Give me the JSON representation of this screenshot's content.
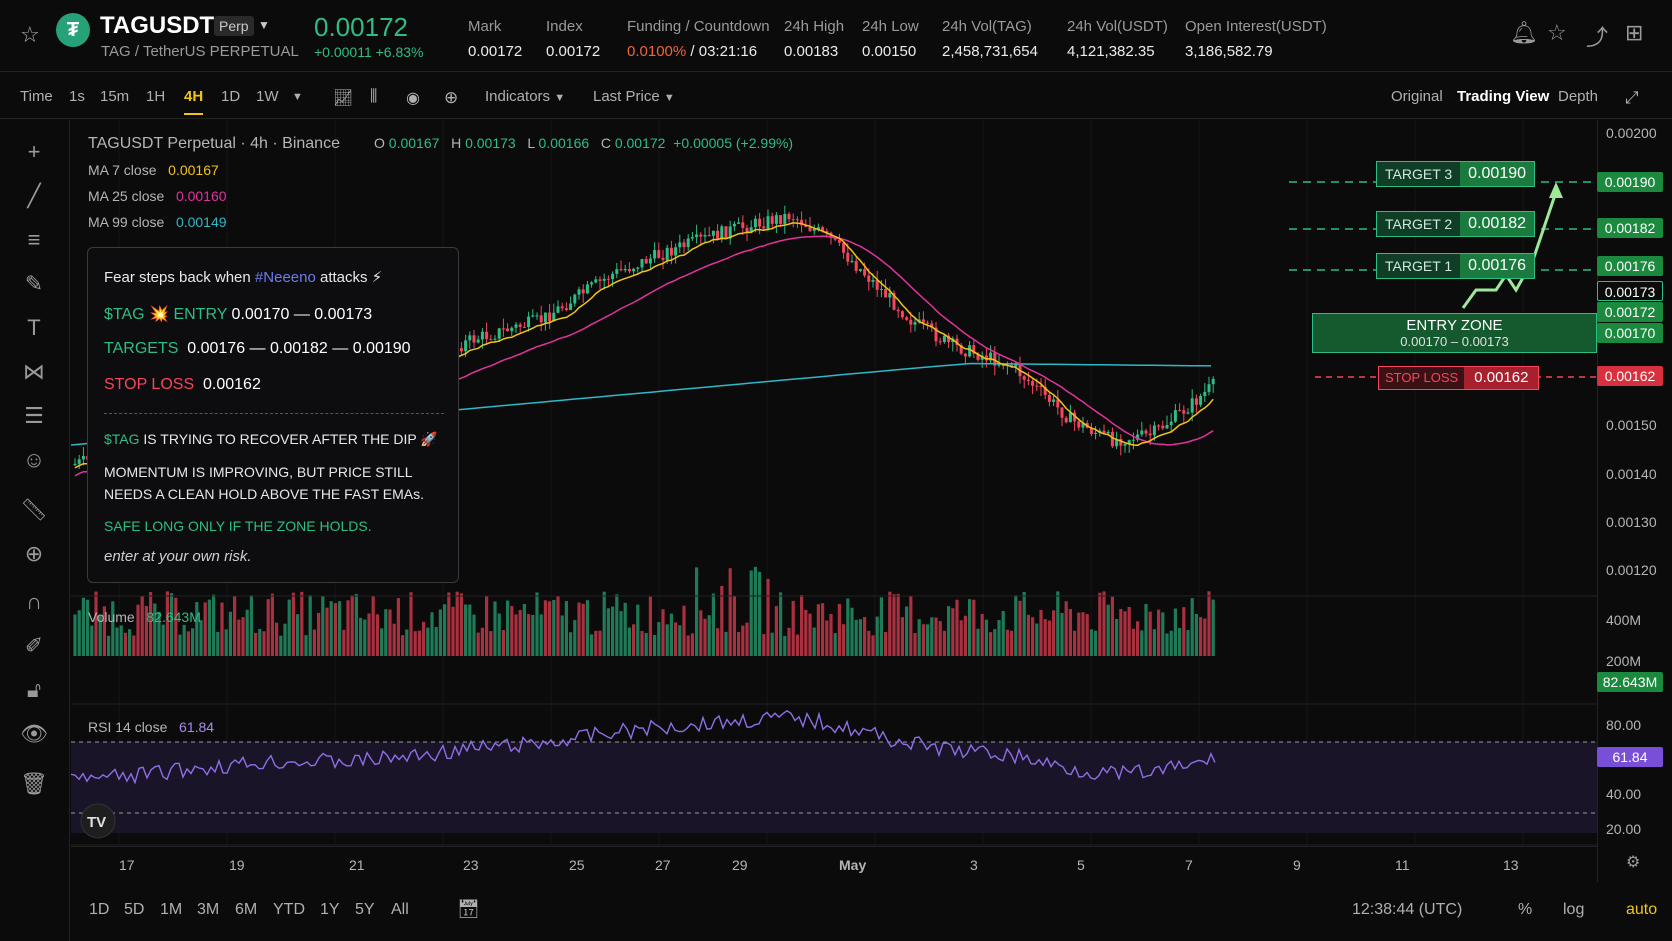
{
  "header": {
    "symbol": "TAGUSDT",
    "badge": "Perp",
    "subtitle": "TAG / TetherUS PERPETUAL",
    "price": "0.00172",
    "change": "+0.00011 +6.83%",
    "stats": [
      {
        "label": "Mark",
        "value": "0.00172"
      },
      {
        "label": "Index",
        "value": "0.00172"
      },
      {
        "label": "Funding / Countdown",
        "value_rate": "0.0100%",
        "value_time": "/ 03:21:16"
      },
      {
        "label": "24h High",
        "value": "0.00183"
      },
      {
        "label": "24h Low",
        "value": "0.00150"
      },
      {
        "label": "24h Vol(TAG)",
        "value": "2,458,731,654"
      },
      {
        "label": "24h Vol(USDT)",
        "value": "4,121,382.35"
      },
      {
        "label": "Open Interest(USDT)",
        "value": "3,186,582.79"
      }
    ]
  },
  "toolbar": {
    "time": "Time",
    "intervals": [
      "1s",
      "15m",
      "1H",
      "4H",
      "1D",
      "1W"
    ],
    "active_interval": "4H",
    "indicators": "Indicators",
    "last_price": "Last Price",
    "views": [
      "Original",
      "Trading View",
      "Depth"
    ],
    "active_view": "Trading View"
  },
  "legend": {
    "title": "TAGUSDT Perpetual · 4h · Binance",
    "o_label": "O",
    "o": "0.00167",
    "h_label": "H",
    "h": "0.00173",
    "l_label": "L",
    "l": "0.00166",
    "c_label": "C",
    "c": "0.00172",
    "chg": "+0.00005 (+2.99%)",
    "ma": [
      {
        "label": "MA 7 close",
        "value": "0.00167",
        "color": "#f0c419"
      },
      {
        "label": "MA 25 close",
        "value": "0.00160",
        "color": "#e0339b"
      },
      {
        "label": "MA 99 close",
        "value": "0.00149",
        "color": "#2fb8c8"
      }
    ]
  },
  "card": {
    "line1_pre": "Fear steps back when",
    "line1_tag": "#Neeeno",
    "line1_post": "attacks ⚡",
    "tag": "$TAG",
    "entry_label": "ENTRY",
    "entry_value": "0.00170 — 0.00173",
    "targets_label": "TARGETS",
    "targets_value": "0.00176 — 0.00182 — 0.00190",
    "stop_label": "STOP LOSS",
    "stop_value": "0.00162",
    "recover": "IS TRYING TO RECOVER AFTER THE DIP 🚀",
    "momentum1": "MOMENTUM IS IMPROVING, BUT PRICE STILL",
    "momentum2": "NEEDS A CLEAN HOLD ABOVE THE FAST EMAs.",
    "safe": "SAFE LONG ONLY IF THE ZONE HOLDS.",
    "risk": "enter at your own risk."
  },
  "targets": [
    {
      "label": "TARGET 3",
      "value": "0.00190"
    },
    {
      "label": "TARGET 2",
      "value": "0.00182"
    },
    {
      "label": "TARGET 1",
      "value": "0.00176"
    }
  ],
  "entry_zone": {
    "label": "ENTRY ZONE",
    "range": "0.00170 – 0.00173"
  },
  "stop": {
    "label": "STOP LOSS",
    "value": "0.00162"
  },
  "price_axis": [
    "0.00200",
    "0.00150",
    "0.00140",
    "0.00130",
    "0.00120"
  ],
  "price_labels": [
    {
      "v": "0.00190",
      "c": "#1b8a3f"
    },
    {
      "v": "0.00182",
      "c": "#1b8a3f"
    },
    {
      "v": "0.00176",
      "c": "#1b8a3f"
    },
    {
      "v": "0.00173",
      "c": "#0b0b0c"
    },
    {
      "v": "0.00172",
      "c": "#1b8a3f"
    },
    {
      "v": "0.00170",
      "c": "#1b8a3f"
    },
    {
      "v": "0.00162",
      "c": "#d9303e"
    }
  ],
  "volume": {
    "label": "Volume",
    "value": "82.643M",
    "axis": [
      "400M",
      "200M"
    ],
    "badge": "82.643M"
  },
  "rsi": {
    "label": "RSI 14 close",
    "value": "61.84",
    "axis": [
      "80.00",
      "40.00",
      "20.00"
    ],
    "badge": "61.84"
  },
  "x_axis": [
    "17",
    "19",
    "21",
    "23",
    "25",
    "27",
    "29",
    "May",
    "3",
    "5",
    "7",
    "9",
    "11",
    "13"
  ],
  "bottom": {
    "ranges": [
      "1D",
      "5D",
      "1M",
      "3M",
      "6M",
      "YTD",
      "1Y",
      "5Y",
      "All"
    ],
    "clock": "12:38:44 (UTC)",
    "percent": "%",
    "log": "log",
    "auto": "auto"
  },
  "colors": {
    "up": "#2ebd85",
    "down": "#f6465d",
    "accent": "#f0c419"
  }
}
